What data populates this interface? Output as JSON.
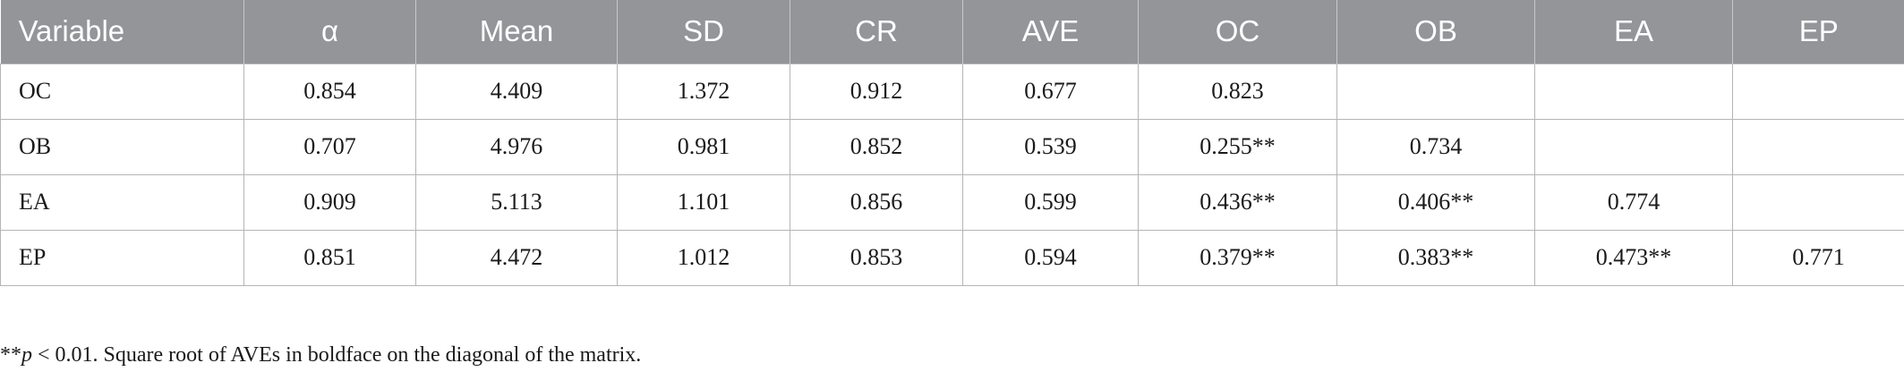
{
  "table": {
    "headers": [
      "Variable",
      "α",
      "Mean",
      "SD",
      "CR",
      "AVE",
      "OC",
      "OB",
      "EA",
      "EP"
    ],
    "rows": [
      [
        "OC",
        "0.854",
        "4.409",
        "1.372",
        "0.912",
        "0.677",
        "0.823",
        "",
        "",
        ""
      ],
      [
        "OB",
        "0.707",
        "4.976",
        "0.981",
        "0.852",
        "0.539",
        "0.255**",
        "0.734",
        "",
        ""
      ],
      [
        "EA",
        "0.909",
        "5.113",
        "1.101",
        "0.856",
        "0.599",
        "0.436**",
        "0.406**",
        "0.774",
        ""
      ],
      [
        "EP",
        "0.851",
        "4.472",
        "1.012",
        "0.853",
        "0.594",
        "0.379**",
        "0.383**",
        "0.473**",
        "0.771"
      ]
    ]
  },
  "footnote": {
    "marker": "**",
    "p_symbol": "p",
    "text": " < 0.01. Square root of AVEs in boldface on the diagonal of the matrix."
  },
  "colors": {
    "header_background": "#939598",
    "header_text": "#ffffff",
    "grid": "#b5b5b5"
  }
}
